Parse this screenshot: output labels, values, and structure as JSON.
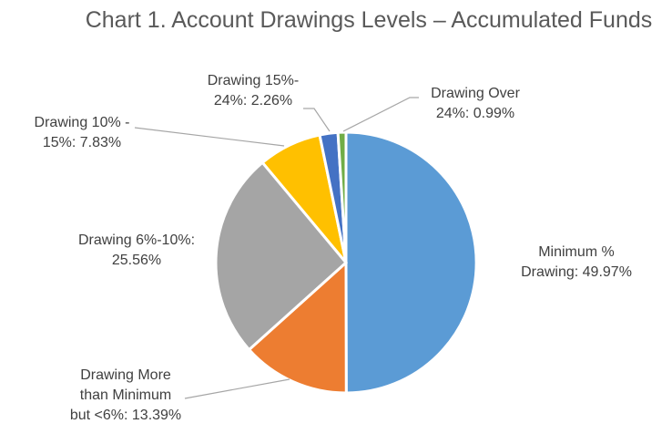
{
  "chart_data": {
    "type": "pie",
    "title": "Chart 1. Account Drawings Levels – Accumulated Funds",
    "slices": [
      {
        "id": "minimum",
        "label_lines": [
          "Minimum %",
          "Drawing: 49.97%"
        ],
        "value": 49.97,
        "color": "#5b9bd5"
      },
      {
        "id": "more-than-min",
        "label_lines": [
          "Drawing More",
          "than Minimum",
          "but <6%: 13.39%"
        ],
        "value": 13.39,
        "color": "#ed7d31"
      },
      {
        "id": "6-10",
        "label_lines": [
          "Drawing 6%-10%:",
          "25.56%"
        ],
        "value": 25.56,
        "color": "#a5a5a5"
      },
      {
        "id": "10-15",
        "label_lines": [
          "Drawing 10% -",
          "15%: 7.83%"
        ],
        "value": 7.83,
        "color": "#ffc000"
      },
      {
        "id": "15-24",
        "label_lines": [
          "Drawing 15%-",
          "24%: 2.26%"
        ],
        "value": 2.26,
        "color": "#4472c4"
      },
      {
        "id": "over-24",
        "label_lines": [
          "Drawing Over",
          "24%: 0.99%"
        ],
        "value": 0.99,
        "color": "#70ad47"
      }
    ]
  }
}
